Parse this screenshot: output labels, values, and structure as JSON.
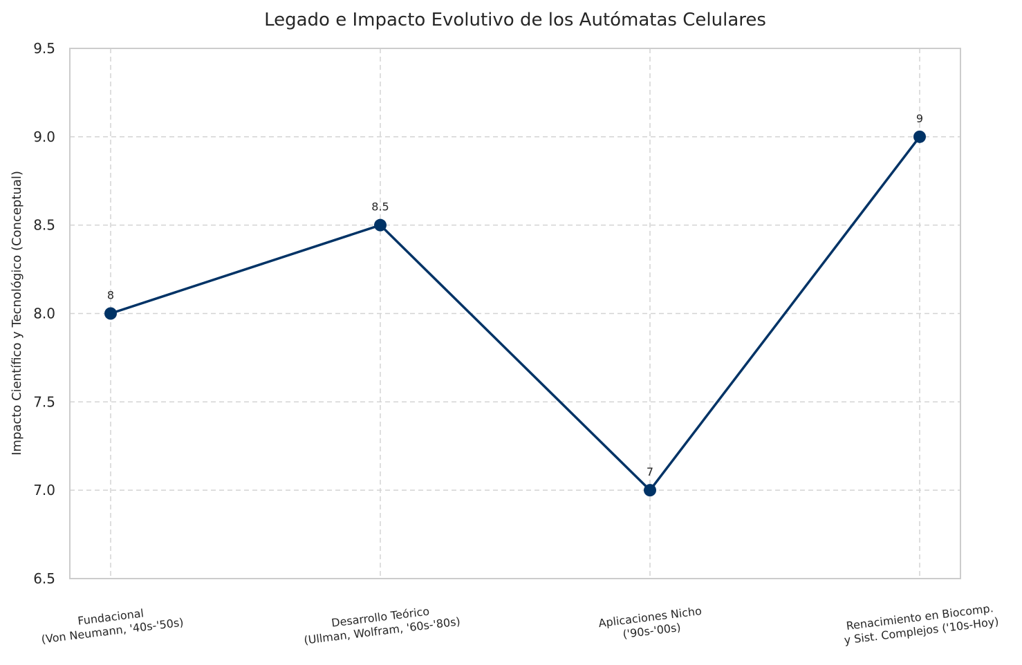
{
  "chart_data": {
    "type": "line",
    "title": "Legado e Impacto Evolutivo de los Autómatas Celulares",
    "xlabel": "",
    "ylabel": "Impacto Científico y Tecnológico (Conceptual)",
    "ylim": [
      6.5,
      9.5
    ],
    "yticks": [
      "6.5",
      "7.0",
      "7.5",
      "8.0",
      "8.5",
      "9.0",
      "9.5"
    ],
    "categories": [
      [
        "Fundacional",
        "(Von Neumann, '40s-'50s)"
      ],
      [
        "Desarrollo Teórico",
        "(Ullman, Wolfram, '60s-'80s)"
      ],
      [
        "Aplicaciones Nicho",
        "('90s-'00s)"
      ],
      [
        "Renacimiento en Biocomp.",
        "y Sist. Complejos ('10s-Hoy)"
      ]
    ],
    "series": [
      {
        "values": [
          8,
          8.5,
          7,
          9
        ],
        "data_labels": [
          "8",
          "8.5",
          "7",
          "9"
        ],
        "color": "#003366"
      }
    ],
    "grid": true
  },
  "colors": {
    "line": "#003366",
    "grid": "#d3d3d3",
    "spine": "#cccccc",
    "text": "#262626"
  }
}
